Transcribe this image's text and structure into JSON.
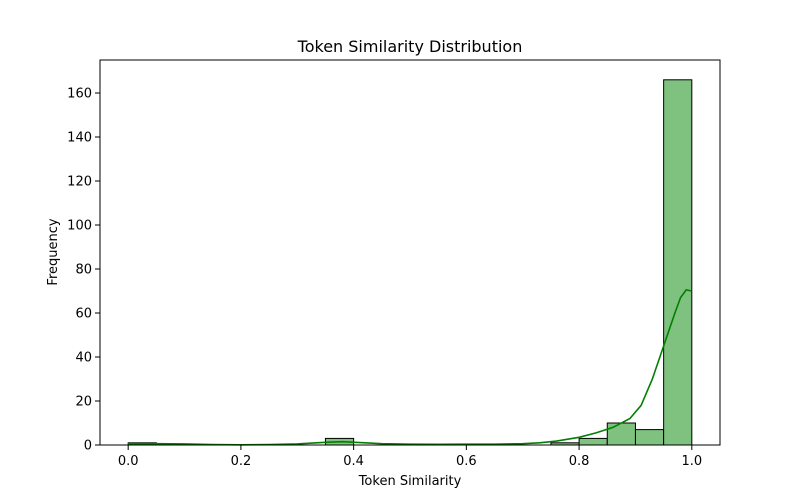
{
  "chart_data": {
    "type": "bar",
    "title": "Token Similarity Distribution",
    "xlabel": "Token Similarity",
    "ylabel": "Frequency",
    "xlim": [
      -0.05,
      1.05
    ],
    "ylim": [
      0,
      175
    ],
    "x_ticks": [
      0.0,
      0.2,
      0.4,
      0.6,
      0.8,
      1.0
    ],
    "x_tick_labels": [
      "0.0",
      "0.2",
      "0.4",
      "0.6",
      "0.8",
      "1.0"
    ],
    "y_ticks": [
      0,
      20,
      40,
      60,
      80,
      100,
      120,
      140,
      160
    ],
    "y_tick_labels": [
      "0",
      "20",
      "40",
      "60",
      "80",
      "100",
      "120",
      "140",
      "160"
    ],
    "bin_edges": [
      0.0,
      0.05,
      0.1,
      0.15,
      0.2,
      0.25,
      0.3,
      0.35,
      0.4,
      0.45,
      0.5,
      0.55,
      0.6,
      0.65,
      0.7,
      0.75,
      0.8,
      0.85,
      0.9,
      0.95,
      1.0
    ],
    "counts": [
      1,
      0,
      0,
      0,
      0,
      0,
      0,
      3,
      0,
      0,
      0,
      0,
      0,
      0,
      0,
      1,
      3,
      10,
      7,
      166
    ],
    "kde_x": [
      0.0,
      0.05,
      0.1,
      0.15,
      0.2,
      0.25,
      0.3,
      0.35,
      0.38,
      0.42,
      0.45,
      0.5,
      0.55,
      0.6,
      0.65,
      0.7,
      0.73,
      0.76,
      0.8,
      0.83,
      0.86,
      0.89,
      0.91,
      0.93,
      0.95,
      0.97,
      0.98,
      0.99,
      1.0
    ],
    "kde_y": [
      0.6,
      0.6,
      0.5,
      0.2,
      0.1,
      0.2,
      0.5,
      1.2,
      1.5,
      1.0,
      0.6,
      0.4,
      0.3,
      0.4,
      0.4,
      0.6,
      1.0,
      1.8,
      3.5,
      5.5,
      8.0,
      12.0,
      18.0,
      30.0,
      45.0,
      60.0,
      67.0,
      70.5,
      70.0
    ],
    "grid": false,
    "colors": {
      "bar_fill": "#7fc17f",
      "bar_edge": "#000000",
      "kde_line": "#008000"
    }
  }
}
